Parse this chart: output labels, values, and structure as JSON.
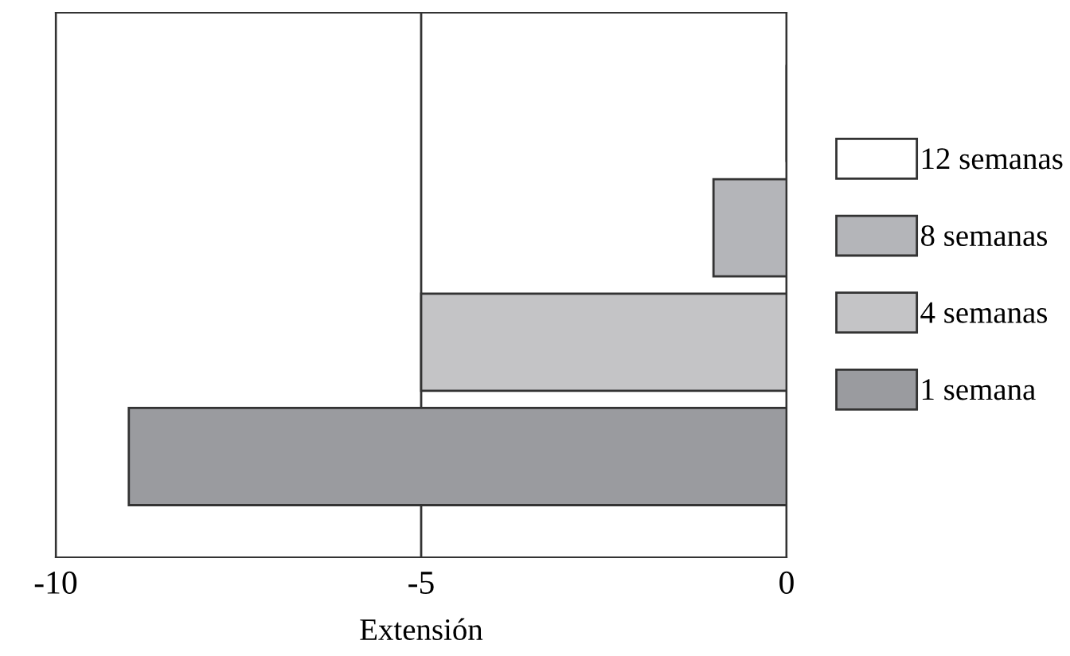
{
  "chart_data": {
    "type": "bar",
    "orientation": "horizontal",
    "xlabel": "Extensión",
    "categories": [
      null
    ],
    "series": [
      {
        "name": "12 semanas",
        "color": "#ffffff",
        "values": [
          0
        ]
      },
      {
        "name": "8 semanas",
        "color": "#b4b5b9",
        "values": [
          -1.0
        ]
      },
      {
        "name": "4 semanas",
        "color": "#c4c4c6",
        "values": [
          -5.0
        ]
      },
      {
        "name": "1 semana",
        "color": "#9a9b9f",
        "values": [
          -9.0
        ]
      }
    ],
    "xlim": [
      -10,
      0
    ],
    "xticks": [
      -10,
      -5,
      0
    ],
    "grid": "x",
    "legend": "right"
  }
}
